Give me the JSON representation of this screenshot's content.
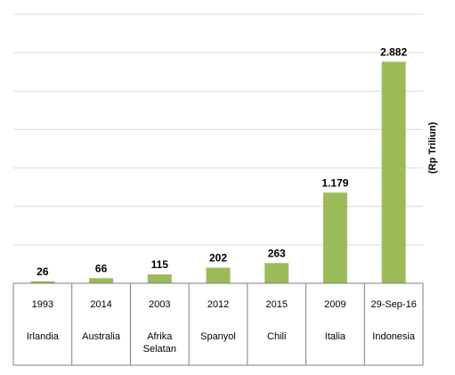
{
  "chart_data": {
    "type": "bar",
    "title": "",
    "xlabel": "",
    "ylabel": "(Rp Triliun)",
    "ylim": [
      0,
      3500
    ],
    "grid": true,
    "legend": "none",
    "bar_color": "#9bbb59",
    "categories": [
      {
        "year": "1993",
        "country": [
          "Irlandia"
        ]
      },
      {
        "year": "2014",
        "country": [
          "Australia"
        ]
      },
      {
        "year": "2003",
        "country": [
          "Afrika",
          "Selatan"
        ]
      },
      {
        "year": "2012",
        "country": [
          "Spanyol"
        ]
      },
      {
        "year": "2015",
        "country": [
          "Chili"
        ]
      },
      {
        "year": "2009",
        "country": [
          "Italia"
        ]
      },
      {
        "year": "29-Sep-16",
        "country": [
          "Indonesia"
        ]
      }
    ],
    "values": [
      26,
      66,
      115,
      202,
      263,
      1179,
      2882
    ],
    "data_labels": [
      "26",
      "66",
      "115",
      "202",
      "263",
      "1.179",
      "2.882"
    ]
  }
}
